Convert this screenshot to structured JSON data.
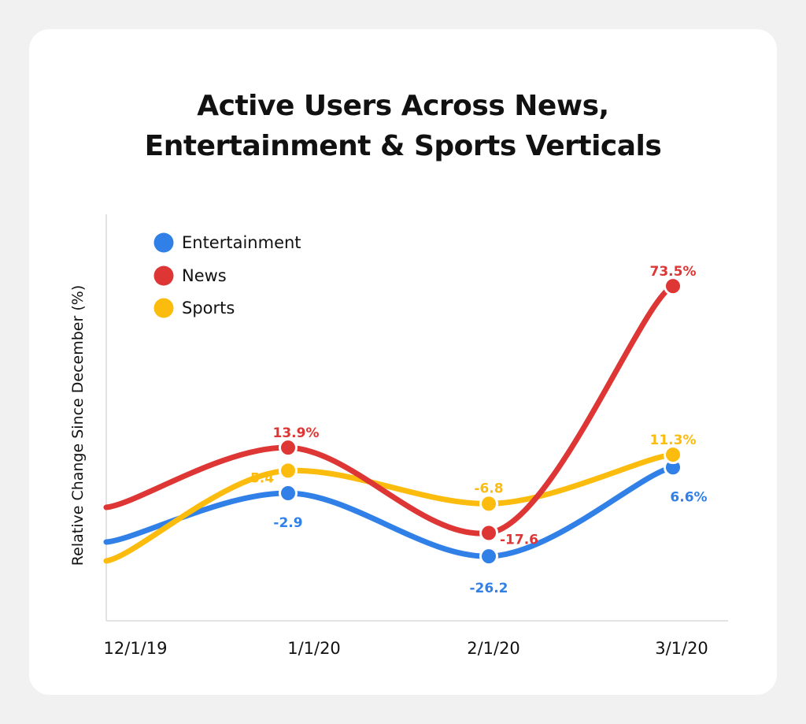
{
  "chart_data": {
    "type": "line",
    "title_lines": [
      "Active Users Across News,",
      "Entertainment & Sports Verticals"
    ],
    "title": "Active Users Across News, Entertainment & Sports Verticals",
    "xlabel": "",
    "ylabel": "Relative Change Since December (%)",
    "categories": [
      "12/1/19",
      "1/1/20",
      "2/1/20",
      "3/1/20"
    ],
    "ylim": [
      -50,
      100
    ],
    "grid": false,
    "legend_position": "top-left",
    "series": [
      {
        "name": "Entertainment",
        "color": "#3080e8",
        "values": [
          null,
          -2.9,
          -26.2,
          6.6
        ],
        "labels": [
          "",
          "-2.9",
          "-26.2",
          "6.6%"
        ]
      },
      {
        "name": "News",
        "color": "#de3535",
        "values": [
          null,
          13.9,
          -17.6,
          73.5
        ],
        "labels": [
          "",
          "13.9%",
          "-17.6",
          "73.5%"
        ]
      },
      {
        "name": "Sports",
        "color": "#fbbc0e",
        "values": [
          null,
          5.4,
          -6.8,
          11.3
        ],
        "labels": [
          "",
          "5.4",
          "-6.8",
          "11.3%"
        ]
      }
    ]
  }
}
